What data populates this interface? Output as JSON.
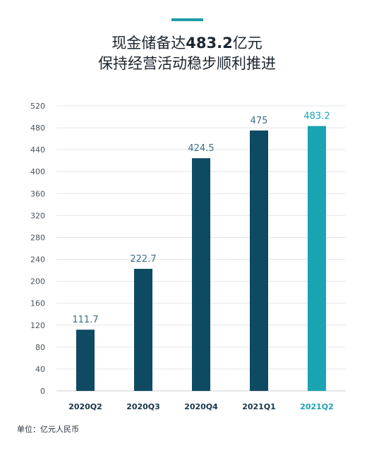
{
  "header": {
    "title_line1_prefix": "现金储备达",
    "title_line1_value": "483.2",
    "title_line1_suffix": "亿元",
    "title_line2": "保持经营活动稳步顺利推进"
  },
  "unit_note": "单位：亿元人民币",
  "colors": {
    "bar": "#0f4a63",
    "highlight": "#1aa4b2",
    "accent": "#1f9ba8"
  },
  "chart_data": {
    "type": "bar",
    "categories": [
      "2020Q2",
      "2020Q3",
      "2020Q4",
      "2021Q1",
      "2021Q2"
    ],
    "values": [
      111.7,
      222.7,
      424.5,
      475,
      483.2
    ],
    "value_labels": [
      "111.7",
      "222.7",
      "424.5",
      "475",
      "483.2"
    ],
    "highlight_index": 4,
    "ylim": [
      0,
      520
    ],
    "yticks": [
      0,
      40,
      80,
      120,
      160,
      200,
      240,
      280,
      320,
      360,
      400,
      440,
      480,
      520
    ],
    "grid": true,
    "xlabel": "",
    "ylabel": ""
  }
}
